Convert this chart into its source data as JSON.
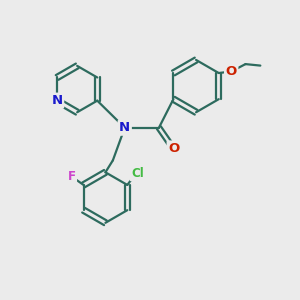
{
  "bg_color": "#ebebeb",
  "bond_color": "#2d6b5e",
  "bond_width": 1.6,
  "atom_colors": {
    "N": "#1a1acc",
    "O": "#cc2200",
    "Cl": "#44bb44",
    "F": "#cc44cc"
  },
  "font_size_atom": 8.5,
  "fig_width": 3.0,
  "fig_height": 3.0,
  "dpi": 100
}
